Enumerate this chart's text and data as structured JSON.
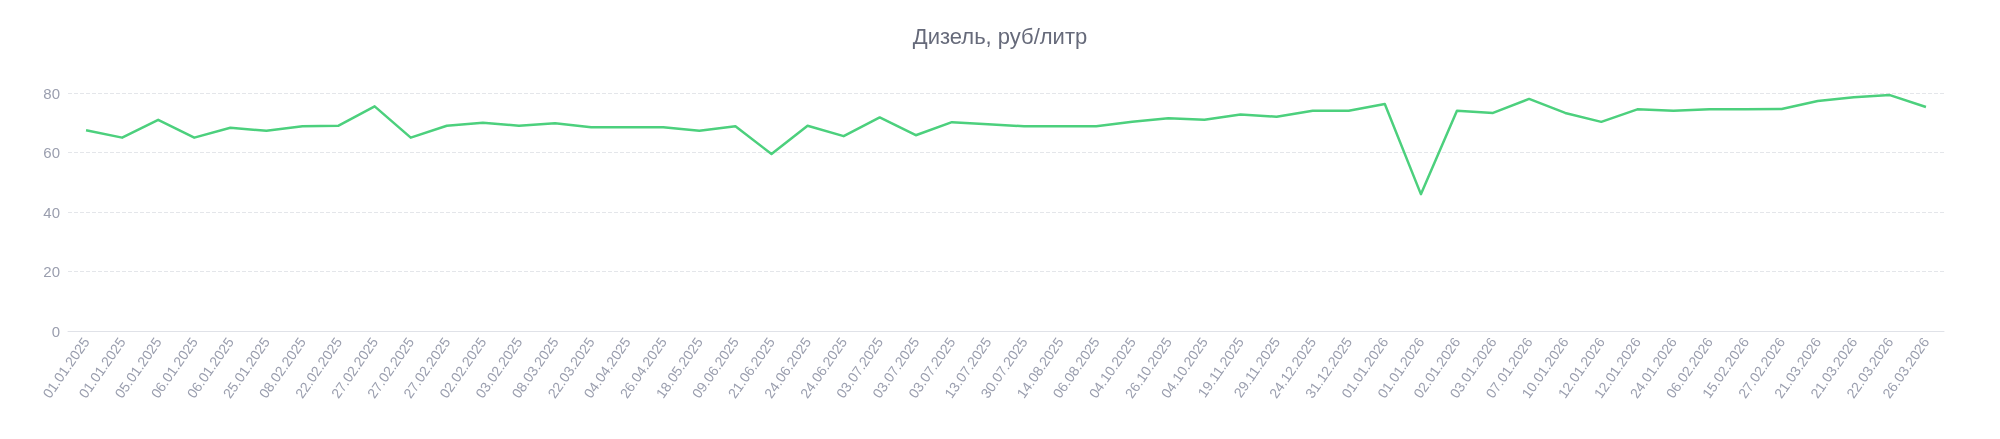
{
  "chart_data": {
    "type": "line",
    "title": "Дизель, руб/литр",
    "categories": [
      "01.01.2025",
      "01.01.2025",
      "05.01.2025",
      "06.01.2025",
      "06.01.2025",
      "25.01.2025",
      "08.02.2025",
      "22.02.2025",
      "27.02.2025",
      "27.02.2025",
      "27.02.2025",
      "02.02.2025",
      "03.02.2025",
      "08.03.2025",
      "22.03.2025",
      "04.04.2025",
      "26.04.2025",
      "18.05.2025",
      "09.06.2025",
      "21.06.2025",
      "24.06.2025",
      "24.06.2025",
      "03.07.2025",
      "03.07.2025",
      "03.07.2025",
      "13.07.2025",
      "30.07.2025",
      "14.08.2025",
      "06.08.2025",
      "04.10.2025",
      "26.10.2025",
      "04.10.2025",
      "19.11.2025",
      "29.11.2025",
      "24.12.2025",
      "31.12.2025",
      "01.01.2026",
      "01.01.2026",
      "02.01.2026",
      "03.01.2026",
      "07.01.2026",
      "10.01.2026",
      "12.01.2026",
      "12.01.2026",
      "24.01.2026",
      "06.02.2026",
      "15.02.2026",
      "27.02.2026",
      "21.03.2026",
      "21.03.2026",
      "22.03.2026",
      "26.03.2026"
    ],
    "series": [
      {
        "color": "#4cd07d",
        "values": [
          67.5,
          65,
          71,
          65,
          68.3,
          67.3,
          68.8,
          69,
          75.5,
          65,
          69,
          70,
          69,
          69.8,
          68.5,
          68.5,
          68.5,
          67.3,
          68.8,
          59.5,
          69,
          65.5,
          71.8,
          65.8,
          70.2,
          69.5,
          68.8,
          68.8,
          68.8,
          70.3,
          71.5,
          71,
          72.8,
          72,
          74,
          74,
          76.3,
          46,
          74,
          73.3,
          78,
          73.3,
          70.3,
          74.5,
          74,
          74.5,
          74.5,
          74.6,
          77.3,
          78.6,
          79.3,
          75.3
        ]
      }
    ],
    "ylim": [
      0,
      80
    ],
    "yticks": [
      0,
      20,
      40,
      60,
      80
    ],
    "grid": "y",
    "marker": "none",
    "line_style": "solid"
  }
}
